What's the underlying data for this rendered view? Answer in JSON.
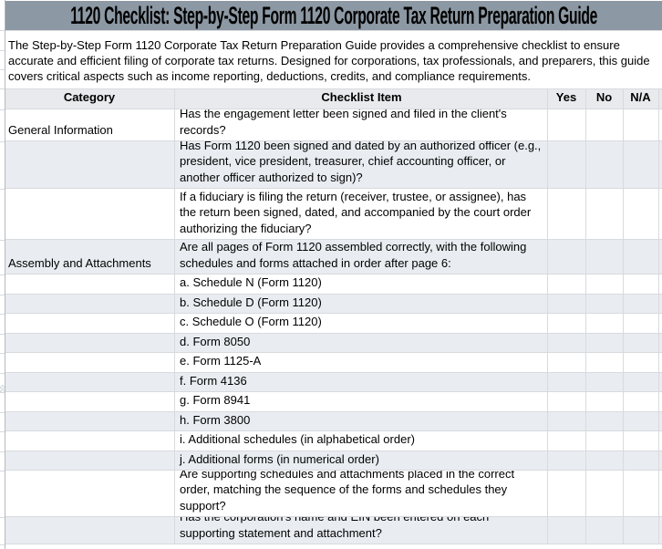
{
  "title": "1120 Checklist: Step-by-Step Form 1120 Corporate Tax Return Preparation Guide",
  "description": "The Step-by-Step Form 1120 Corporate Tax Return Preparation Guide provides a comprehensive checklist to ensure accurate and efficient filing of corporate tax returns. Designed for corporations, tax professionals, and preparers, this guide covers critical aspects such as income reporting, deductions, credits, and compliance requirements.",
  "table": {
    "columns": [
      "Category",
      "Checklist Item",
      "Yes",
      "No",
      "N/A"
    ],
    "rows": [
      {
        "category": "General Information",
        "item": "Has the engagement letter been signed and filed in the client's records?"
      },
      {
        "category": "",
        "item": "Has Form 1120 been signed and dated by an authorized officer (e.g., president, vice president, treasurer, chief accounting officer, or another officer authorized to sign)?"
      },
      {
        "category": "",
        "item": "If a fiduciary is filing the return (receiver, trustee, or assignee), has the return been signed, dated, and accompanied by the court order authorizing the fiduciary?"
      },
      {
        "category": "Assembly and Attachments",
        "item": "Are all pages of Form 1120 assembled correctly, with the following schedules and forms attached in order after page 6:"
      },
      {
        "category": "",
        "item": "a. Schedule N (Form 1120)"
      },
      {
        "category": "",
        "item": "b. Schedule D (Form 1120)"
      },
      {
        "category": "",
        "item": "c. Schedule O (Form 1120)"
      },
      {
        "category": "",
        "item": "d. Form 8050"
      },
      {
        "category": "",
        "item": "e. Form 1125-A"
      },
      {
        "category": "",
        "item": "f. Form 4136"
      },
      {
        "category": "",
        "item": "g. Form 8941"
      },
      {
        "category": "",
        "item": "h. Form 3800"
      },
      {
        "category": "",
        "item": "i. Additional schedules (in alphabetical order)"
      },
      {
        "category": "",
        "item": "j. Additional forms (in numerical order)"
      },
      {
        "category": "",
        "item": "Are supporting schedules and attachments placed in the correct order, matching the sequence of the forms and schedules they support?"
      },
      {
        "category": "",
        "item": "Has the corporation's name and EIN been entered on each supporting statement and attachment?"
      }
    ]
  },
  "colors": {
    "title_bar": "#8c98a3",
    "header_row": "#e8eaed",
    "banded_row": "#e9edf1",
    "grid_line": "#d7dade"
  }
}
